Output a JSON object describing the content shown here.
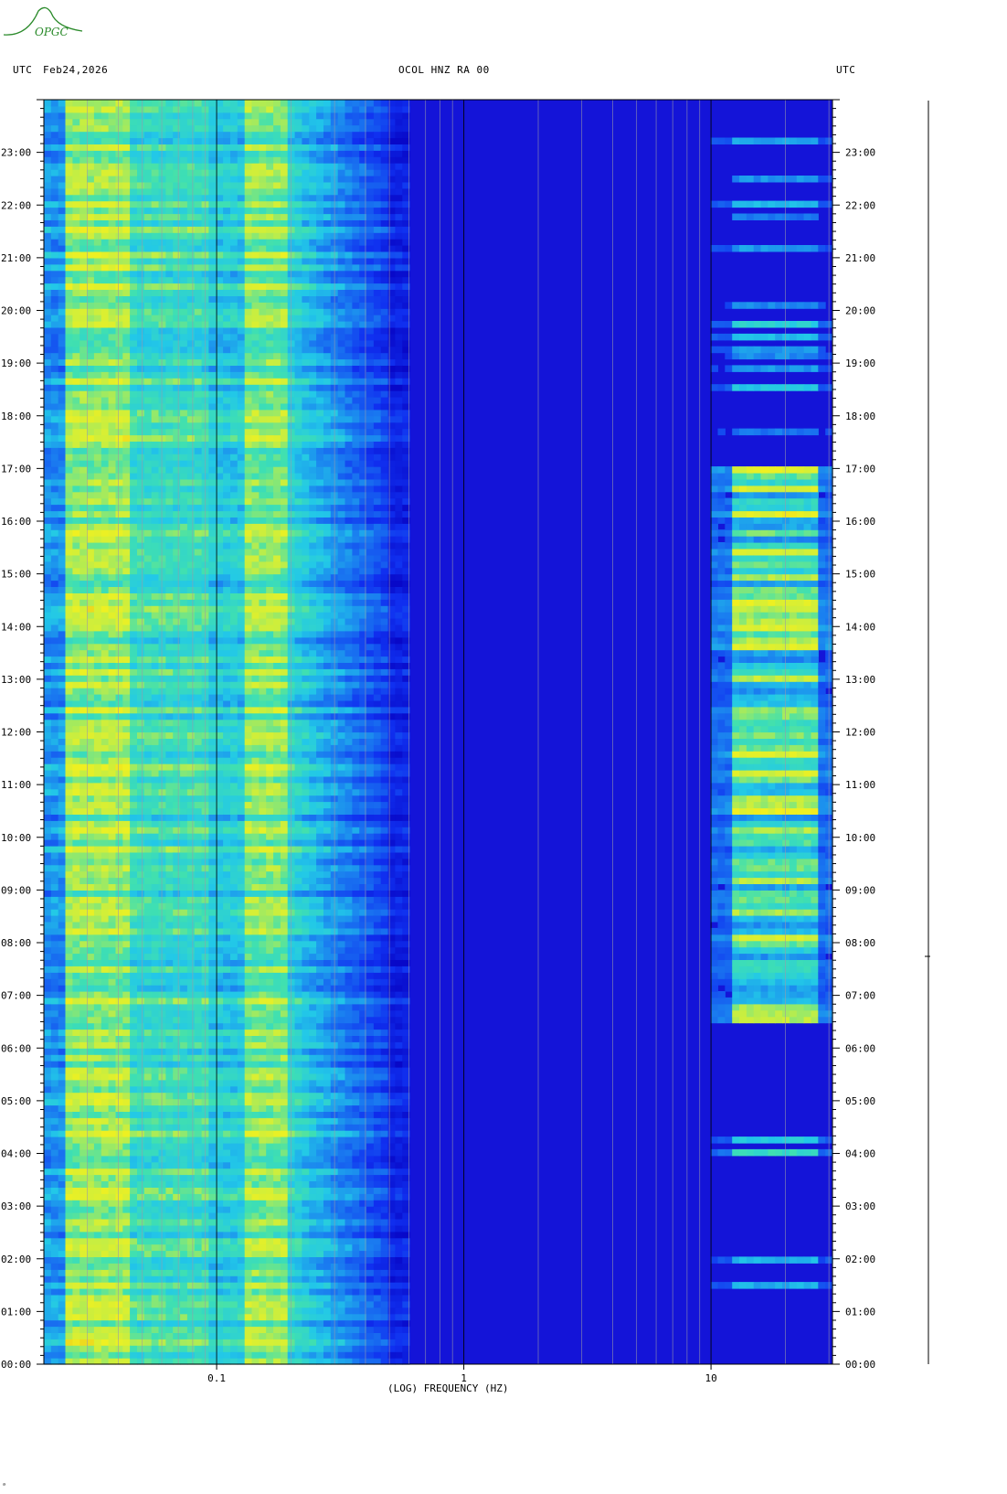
{
  "header": {
    "logo_text": "OPGC",
    "left_tz": "UTC",
    "date": "Feb24,2026",
    "station": "OCOL HNZ RA 00",
    "right_tz": "UTC"
  },
  "footer_mark": "ᵃ",
  "colors": {
    "background": "#ffffff",
    "plot_low": "#1010d8",
    "plot_mid": "#22c8e8",
    "plot_high": "#e8e830",
    "plot_peak": "#e04010",
    "logo": "#2a8a2a"
  },
  "chart_data": {
    "type": "heatmap",
    "title": "OCOL HNZ RA 00",
    "xlabel": "(LOG) FREQUENCY (HZ)",
    "ylabel": "",
    "x_scale": "log",
    "xlim": [
      0.02,
      31
    ],
    "x_ticks": [
      0.1,
      1,
      10
    ],
    "x_tick_labels": [
      "0.1",
      "1",
      "10"
    ],
    "ylim_hours": [
      0,
      24
    ],
    "y_tick_labels": [
      "00:00",
      "01:00",
      "02:00",
      "03:00",
      "04:00",
      "05:00",
      "06:00",
      "07:00",
      "08:00",
      "09:00",
      "10:00",
      "11:00",
      "12:00",
      "13:00",
      "14:00",
      "15:00",
      "16:00",
      "17:00",
      "18:00",
      "19:00",
      "20:00",
      "21:00",
      "22:00",
      "23:00"
    ],
    "energy_bands": [
      {
        "f_lo": 0.025,
        "f_hi": 0.045,
        "level": "high"
      },
      {
        "f_lo": 0.045,
        "f_hi": 0.09,
        "level": "mid-high"
      },
      {
        "f_lo": 0.13,
        "f_hi": 0.2,
        "level": "high"
      },
      {
        "f_lo": 0.2,
        "f_hi": 0.5,
        "level": "mid"
      },
      {
        "f_lo": 0.5,
        "f_hi": 10,
        "level": "low"
      },
      {
        "f_lo": 12,
        "f_hi": 28,
        "level": "bursts"
      }
    ]
  }
}
